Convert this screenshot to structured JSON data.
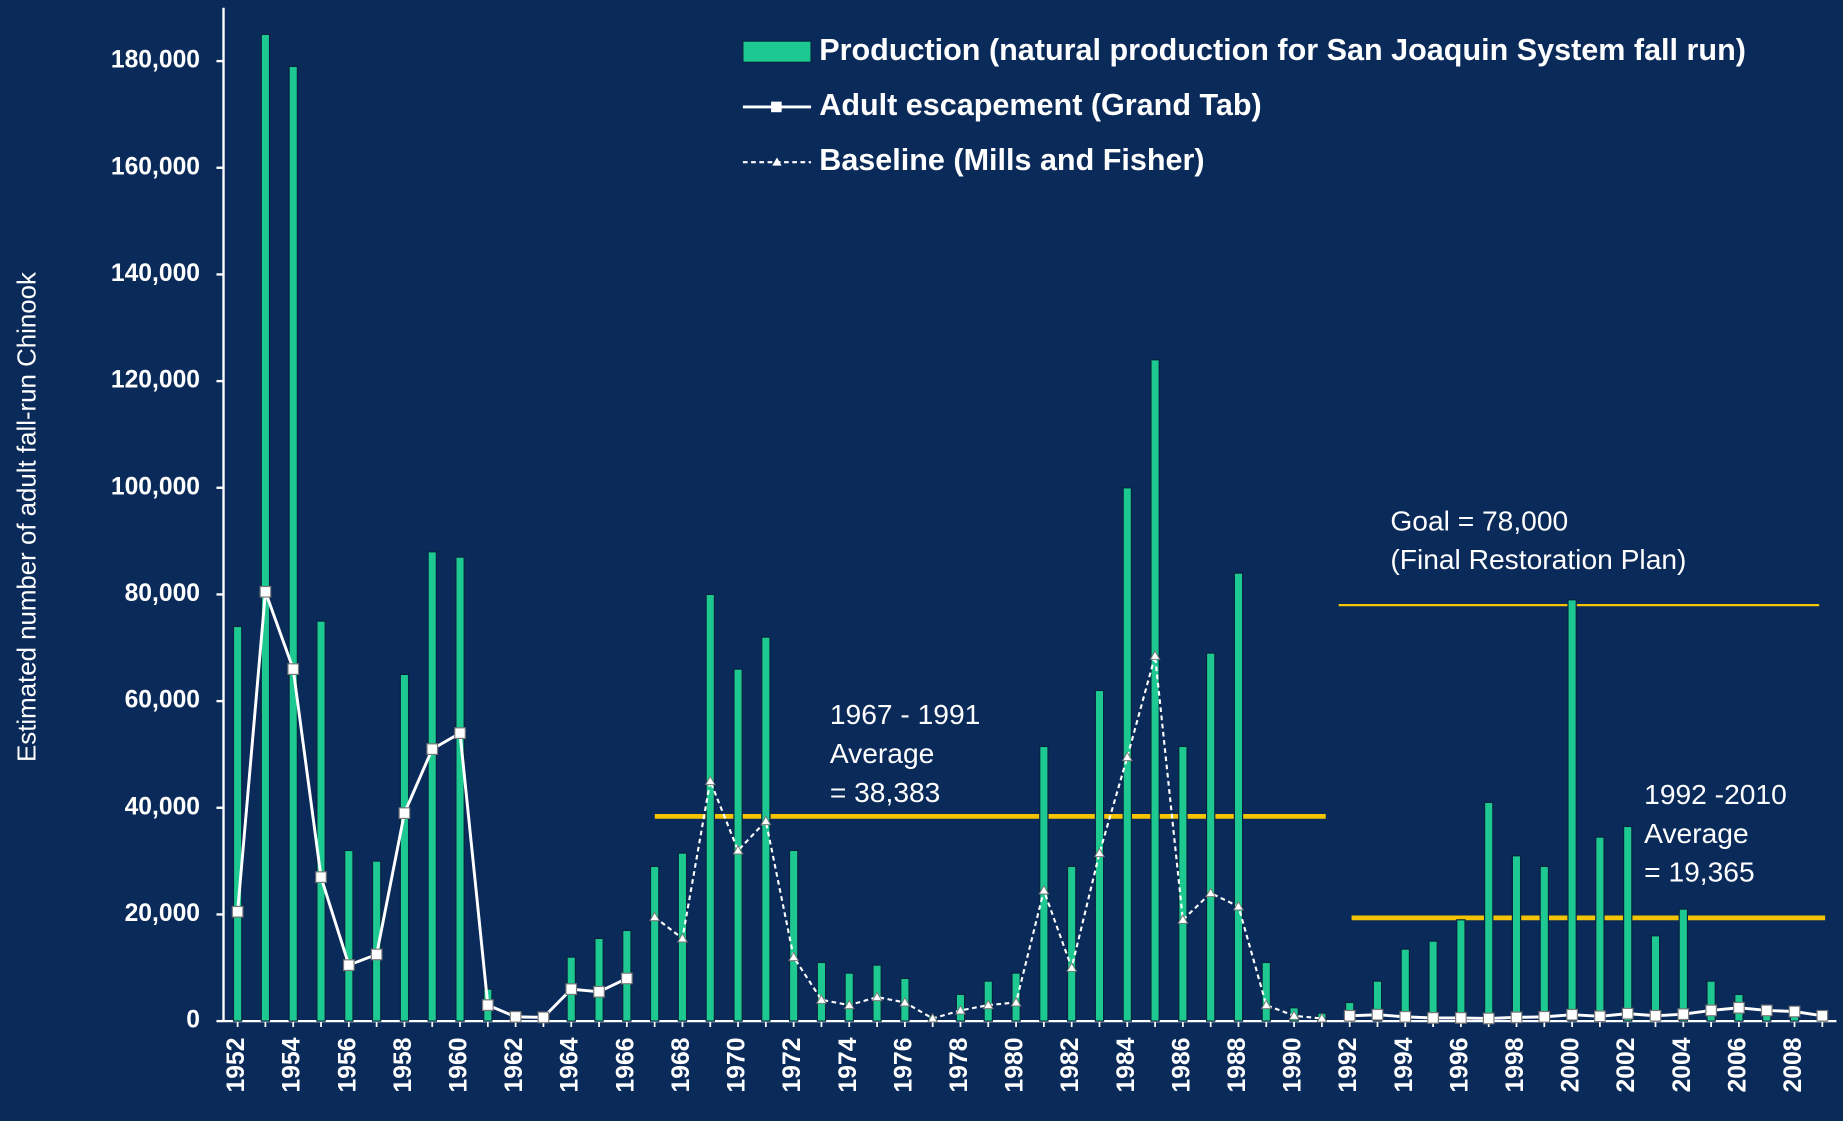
{
  "chart_data": {
    "type": "bar",
    "y_label": "Estimated number of adult fall-run Chinook",
    "categories": [
      "1952",
      null,
      "1954",
      null,
      "1956",
      null,
      "1958",
      null,
      "1960",
      null,
      "1962",
      null,
      "1964",
      null,
      "1966",
      null,
      "1968",
      null,
      "1970",
      null,
      "1972",
      null,
      "1974",
      null,
      "1976",
      null,
      "1978",
      null,
      "1980",
      null,
      "1982",
      null,
      "1984",
      null,
      "1986",
      null,
      "1988",
      null,
      "1990",
      null,
      "1992",
      null,
      "1994",
      null,
      "1996",
      null,
      "1998",
      null,
      "2000",
      null,
      "2002",
      null,
      "2004",
      null,
      "2006",
      null,
      "2008",
      null
    ],
    "series": [
      {
        "name": "Production (natural production for San Joaquin System fall run)",
        "kind": "bar",
        "color": "#1dc990",
        "values": [
          74000,
          185000,
          179000,
          75000,
          32000,
          30000,
          65000,
          88000,
          87000,
          6000,
          1000,
          500,
          12000,
          15500,
          17000,
          29000,
          31500,
          80000,
          66000,
          72000,
          32000,
          11000,
          9000,
          10500,
          8000,
          1000,
          5000,
          7500,
          9000,
          51500,
          29000,
          62000,
          100000,
          124000,
          51500,
          69000,
          84000,
          11000,
          2500,
          1500,
          3500,
          7500,
          13500,
          15000,
          19000,
          41000,
          31000,
          29000,
          79000,
          34500,
          36500,
          16000,
          21000,
          7500,
          5000,
          2000,
          2000,
          1500
        ]
      },
      {
        "name": "Adult escapement (Grand Tab)",
        "kind": "line",
        "marker": "square",
        "color": "#ffffff",
        "values": [
          20500,
          80500,
          66000,
          27000,
          10500,
          12500,
          39000,
          51000,
          54000,
          3000,
          800,
          700,
          6000,
          5500,
          8000,
          null,
          null,
          null,
          null,
          null,
          null,
          null,
          null,
          null,
          null,
          null,
          null,
          null,
          null,
          null,
          null,
          null,
          null,
          null,
          null,
          null,
          null,
          null,
          null,
          null,
          1000,
          1200,
          800,
          600,
          600,
          500,
          700,
          800,
          1200,
          900,
          1400,
          1000,
          1300,
          2000,
          2500,
          2000,
          1800,
          1000
        ]
      },
      {
        "name": "Baseline (Mills and Fisher)",
        "kind": "line",
        "marker": "triangle",
        "dashed": true,
        "color": "#ffffff",
        "values": [
          null,
          null,
          null,
          null,
          null,
          null,
          null,
          null,
          null,
          null,
          null,
          null,
          null,
          null,
          null,
          19500,
          15500,
          45000,
          32000,
          37500,
          12000,
          4000,
          3000,
          4500,
          3500,
          500,
          2000,
          3000,
          3500,
          24500,
          10000,
          31500,
          49500,
          68500,
          19000,
          24000,
          21500,
          3000,
          1000,
          500,
          null,
          null,
          null,
          null,
          null,
          null,
          null,
          null,
          null,
          null,
          null,
          null,
          null,
          null,
          null,
          null,
          null,
          null
        ]
      }
    ],
    "ylim": [
      0,
      190000
    ],
    "yticks": [
      0,
      {
        "value": 20000,
        "label": "20,000"
      },
      {
        "value": 40000,
        "label": "40,000"
      },
      {
        "value": 60000,
        "label": "60,000"
      },
      {
        "value": 80000,
        "label": "80,000"
      },
      {
        "value": 100000,
        "label": "100,000"
      },
      {
        "value": 120000,
        "label": "120,000"
      },
      {
        "value": 140000,
        "label": "140,000"
      },
      {
        "value": 160000,
        "label": "160,000"
      },
      {
        "value": 180000,
        "label": "180,000"
      }
    ],
    "reference_lines": [
      {
        "value": 38383,
        "lines": [
          "1967 - 1991",
          "Average",
          " = 38,383"
        ],
        "color": "#f5c400"
      },
      {
        "value": 78000,
        "lines": [
          "Goal = 78,000",
          "(Final Restoration Plan)"
        ],
        "color": "#f5c400"
      },
      {
        "value": 19365,
        "lines": [
          "1992 -2010",
          "Average",
          "= 19,365"
        ],
        "color": "#f5c400"
      }
    ]
  }
}
